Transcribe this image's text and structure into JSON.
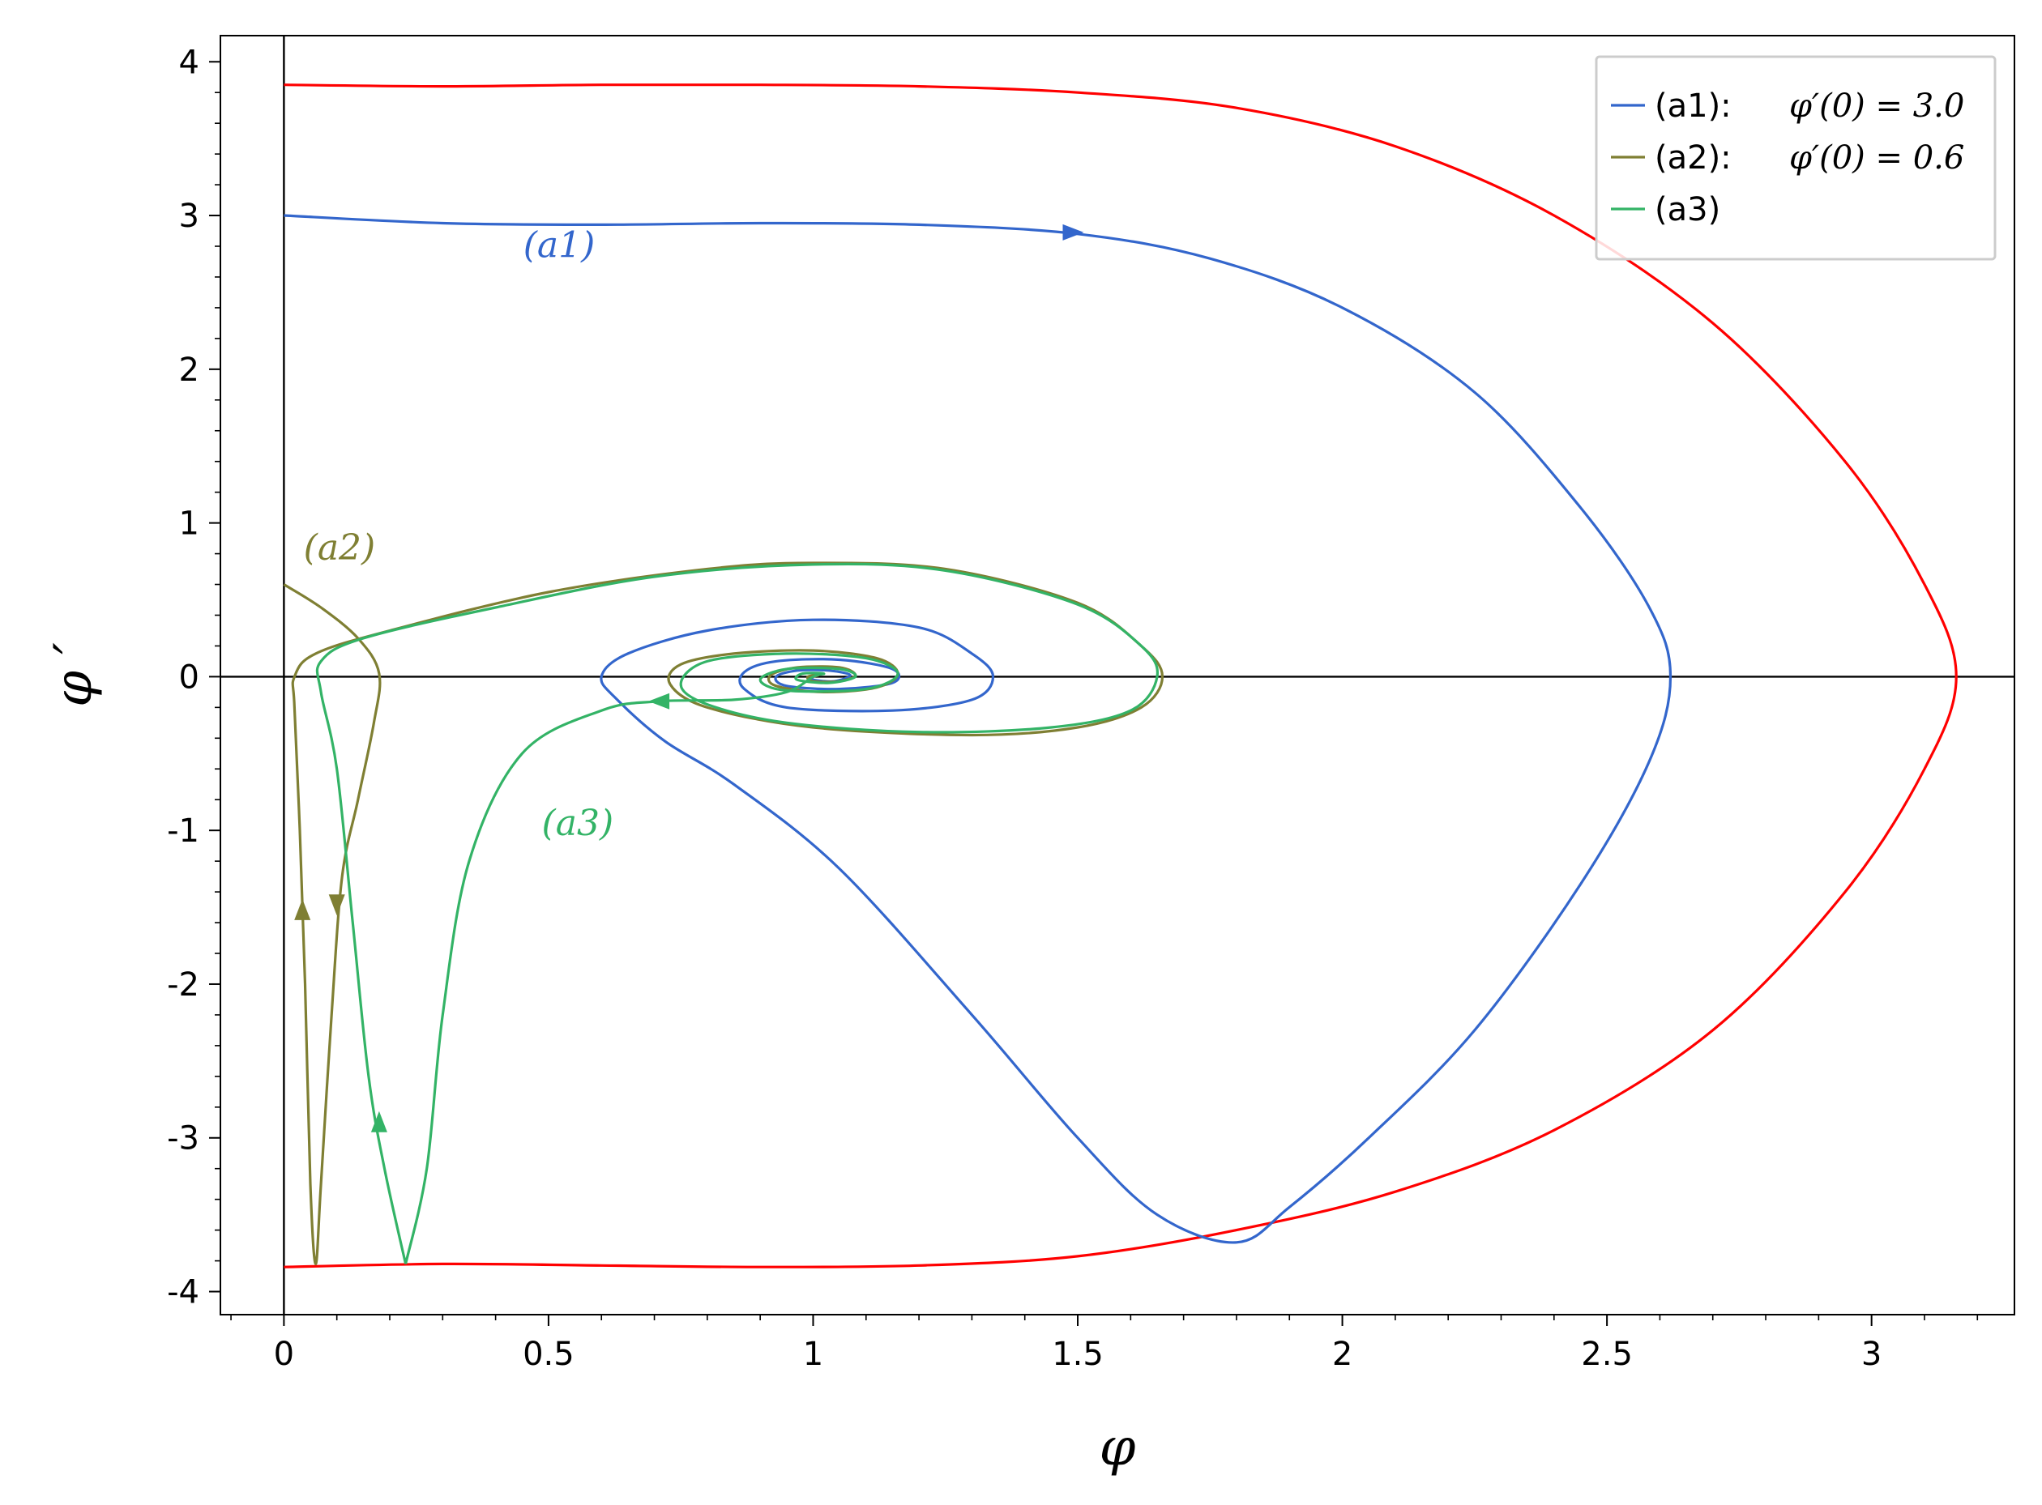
{
  "chart_data": {
    "type": "line",
    "title": "",
    "xlabel": "φ",
    "ylabel": "φ ′",
    "xlim": [
      -0.12,
      3.27
    ],
    "ylim": [
      -4.15,
      4.17
    ],
    "grid": false,
    "legend_position": "top-right",
    "zero_lines": true,
    "x_ticks": [
      0,
      0.5,
      1,
      1.5,
      2,
      2.5,
      3
    ],
    "x_tick_labels": [
      "0",
      "0.5",
      "1",
      "1.5",
      "2",
      "2.5",
      "3"
    ],
    "y_ticks": [
      -4,
      -3,
      -2,
      -1,
      0,
      1,
      2,
      3,
      4
    ],
    "y_tick_labels": [
      "-4",
      "-3",
      "-2",
      "-1",
      "0",
      "1",
      "2",
      "3",
      "4"
    ],
    "legend": [
      {
        "key": "a1",
        "label": "(a1):",
        "math": "φ′(0) = 3.0",
        "color": "#3366cc"
      },
      {
        "key": "a2",
        "label": "(a2):",
        "math": "φ′(0) = 0.6",
        "color": "#7f7f33"
      },
      {
        "key": "a3",
        "label": "(a3)",
        "math": "",
        "color": "#33b366"
      }
    ],
    "annotations": [
      {
        "text": "(a1)",
        "x": 0.52,
        "y": 2.73,
        "color": "#3366cc"
      },
      {
        "text": "(a2)",
        "x": 0.105,
        "y": 0.76,
        "color": "#7f7f33"
      },
      {
        "text": "(a3)",
        "x": 0.555,
        "y": -1.03,
        "color": "#33b366"
      }
    ],
    "series": [
      {
        "key": "separatrix",
        "color": "#ff0000",
        "points": [
          [
            0,
            3.85
          ],
          [
            0.3,
            3.84
          ],
          [
            0.6,
            3.85
          ],
          [
            0.9,
            3.85
          ],
          [
            1.2,
            3.84
          ],
          [
            1.5,
            3.8
          ],
          [
            1.8,
            3.7
          ],
          [
            2.1,
            3.45
          ],
          [
            2.4,
            3.0
          ],
          [
            2.7,
            2.3
          ],
          [
            2.95,
            1.4
          ],
          [
            3.1,
            0.6
          ],
          [
            3.16,
            0
          ],
          [
            3.1,
            -0.6
          ],
          [
            2.95,
            -1.4
          ],
          [
            2.7,
            -2.3
          ],
          [
            2.4,
            -2.95
          ],
          [
            2.1,
            -3.35
          ],
          [
            1.8,
            -3.6
          ],
          [
            1.5,
            -3.77
          ],
          [
            1.2,
            -3.83
          ],
          [
            0.9,
            -3.84
          ],
          [
            0.6,
            -3.83
          ],
          [
            0.3,
            -3.82
          ],
          [
            0,
            -3.84
          ]
        ]
      },
      {
        "key": "a1",
        "color": "#3366cc",
        "arrows": [
          [
            1.49,
            2.89,
            1,
            0
          ]
        ],
        "points": [
          [
            0,
            3.0
          ],
          [
            0.3,
            2.95
          ],
          [
            0.6,
            2.94
          ],
          [
            0.9,
            2.95
          ],
          [
            1.2,
            2.94
          ],
          [
            1.5,
            2.88
          ],
          [
            1.75,
            2.72
          ],
          [
            2.0,
            2.4
          ],
          [
            2.25,
            1.85
          ],
          [
            2.45,
            1.1
          ],
          [
            2.58,
            0.45
          ],
          [
            2.62,
            0
          ],
          [
            2.58,
            -0.55
          ],
          [
            2.45,
            -1.35
          ],
          [
            2.25,
            -2.3
          ],
          [
            2.05,
            -3.0
          ],
          [
            1.9,
            -3.45
          ],
          [
            1.8,
            -3.68
          ],
          [
            1.65,
            -3.5
          ],
          [
            1.5,
            -3.0
          ],
          [
            1.3,
            -2.2
          ],
          [
            1.05,
            -1.25
          ],
          [
            0.85,
            -0.7
          ],
          [
            0.72,
            -0.42
          ],
          [
            0.63,
            -0.15
          ],
          [
            0.6,
            0
          ],
          [
            0.65,
            0.15
          ],
          [
            0.8,
            0.3
          ],
          [
            1.0,
            0.37
          ],
          [
            1.2,
            0.32
          ],
          [
            1.3,
            0.15
          ],
          [
            1.34,
            0
          ],
          [
            1.3,
            -0.15
          ],
          [
            1.15,
            -0.22
          ],
          [
            0.95,
            -0.2
          ],
          [
            0.87,
            -0.08
          ],
          [
            0.87,
            0.03
          ],
          [
            0.93,
            0.1
          ],
          [
            1.05,
            0.11
          ],
          [
            1.15,
            0.05
          ],
          [
            1.15,
            -0.04
          ],
          [
            1.05,
            -0.08
          ],
          [
            0.95,
            -0.06
          ],
          [
            0.93,
            0
          ],
          [
            0.97,
            0.04
          ],
          [
            1.03,
            0.04
          ],
          [
            1.07,
            0.01
          ],
          [
            1.04,
            -0.03
          ],
          [
            1.0,
            -0.02
          ],
          [
            1.0,
            0.0
          ]
        ]
      },
      {
        "key": "a2",
        "color": "#7f7f33",
        "arrows": [
          [
            0.1,
            -1.48,
            0,
            -1
          ],
          [
            0.035,
            -1.52,
            0,
            1
          ]
        ],
        "points": [
          [
            0,
            0.6
          ],
          [
            0.07,
            0.45
          ],
          [
            0.14,
            0.25
          ],
          [
            0.18,
            0.02
          ],
          [
            0.17,
            -0.3
          ],
          [
            0.14,
            -0.8
          ],
          [
            0.11,
            -1.3
          ],
          [
            0.09,
            -2.2
          ],
          [
            0.07,
            -3.3
          ],
          [
            0.06,
            -3.82
          ],
          [
            0.05,
            -3.3
          ],
          [
            0.04,
            -2.0
          ],
          [
            0.03,
            -1.0
          ],
          [
            0.02,
            -0.2
          ],
          [
            0.02,
            0
          ],
          [
            0.06,
            0.15
          ],
          [
            0.2,
            0.3
          ],
          [
            0.5,
            0.55
          ],
          [
            0.8,
            0.7
          ],
          [
            1.0,
            0.74
          ],
          [
            1.25,
            0.7
          ],
          [
            1.5,
            0.48
          ],
          [
            1.62,
            0.2
          ],
          [
            1.66,
            0
          ],
          [
            1.62,
            -0.2
          ],
          [
            1.5,
            -0.33
          ],
          [
            1.3,
            -0.38
          ],
          [
            1.0,
            -0.33
          ],
          [
            0.8,
            -0.2
          ],
          [
            0.73,
            -0.05
          ],
          [
            0.75,
            0.08
          ],
          [
            0.85,
            0.15
          ],
          [
            1.0,
            0.17
          ],
          [
            1.12,
            0.12
          ],
          [
            1.16,
            0.02
          ],
          [
            1.12,
            -0.07
          ],
          [
            1.02,
            -0.1
          ],
          [
            0.93,
            -0.06
          ],
          [
            0.92,
            0.01
          ],
          [
            0.97,
            0.06
          ],
          [
            1.05,
            0.06
          ],
          [
            1.08,
            0.01
          ],
          [
            1.05,
            -0.03
          ],
          [
            1.0,
            -0.03
          ],
          [
            0.99,
            0.0
          ],
          [
            1.01,
            0.01
          ],
          [
            1.0,
            0.0
          ]
        ]
      },
      {
        "key": "a3",
        "color": "#33b366",
        "arrows": [
          [
            0.18,
            -2.9,
            0,
            1
          ],
          [
            0.71,
            -0.16,
            -1,
            0
          ]
        ],
        "points": [
          [
            0.23,
            -3.82
          ],
          [
            0.19,
            -3.2
          ],
          [
            0.16,
            -2.6
          ],
          [
            0.13,
            -1.6
          ],
          [
            0.1,
            -0.6
          ],
          [
            0.07,
            -0.1
          ],
          [
            0.07,
            0.1
          ],
          [
            0.15,
            0.25
          ],
          [
            0.4,
            0.45
          ],
          [
            0.7,
            0.65
          ],
          [
            1.0,
            0.73
          ],
          [
            1.25,
            0.69
          ],
          [
            1.5,
            0.47
          ],
          [
            1.62,
            0.2
          ],
          [
            1.65,
            0
          ],
          [
            1.6,
            -0.22
          ],
          [
            1.45,
            -0.33
          ],
          [
            1.2,
            -0.36
          ],
          [
            0.95,
            -0.3
          ],
          [
            0.8,
            -0.18
          ],
          [
            0.75,
            -0.05
          ],
          [
            0.8,
            0.1
          ],
          [
            0.95,
            0.15
          ],
          [
            1.1,
            0.12
          ],
          [
            1.16,
            0.02
          ],
          [
            1.1,
            -0.08
          ],
          [
            0.95,
            -0.09
          ],
          [
            0.9,
            -0.02
          ],
          [
            0.95,
            0.05
          ],
          [
            1.05,
            0.05
          ],
          [
            1.08,
            0.0
          ],
          [
            1.03,
            -0.04
          ],
          [
            0.97,
            -0.02
          ],
          [
            0.98,
            0.02
          ],
          [
            1.02,
            0.02
          ],
          [
            1.0,
            0.0
          ],
          [
            0.95,
            -0.1
          ],
          [
            0.85,
            -0.15
          ],
          [
            0.71,
            -0.16
          ],
          [
            0.6,
            -0.22
          ],
          [
            0.45,
            -0.5
          ],
          [
            0.35,
            -1.2
          ],
          [
            0.3,
            -2.2
          ],
          [
            0.27,
            -3.2
          ],
          [
            0.23,
            -3.82
          ]
        ]
      }
    ]
  }
}
